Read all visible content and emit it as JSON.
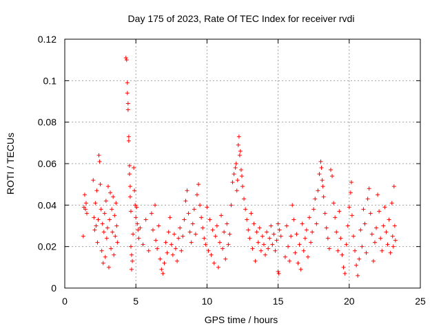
{
  "chart_data": {
    "type": "scatter",
    "title": "Day 175 of 2023, Rate Of TEC Index for receiver rvdi",
    "xlabel": "GPS time / hours",
    "ylabel": "ROTI / TECUs",
    "xlim": [
      0,
      25
    ],
    "ylim": [
      0,
      0.12
    ],
    "xticks": [
      0,
      5,
      10,
      15,
      20,
      25
    ],
    "xtick_labels": [
      "0",
      "5",
      "10",
      "15",
      "20",
      "25"
    ],
    "yticks": [
      0,
      0.02,
      0.04,
      0.06,
      0.08,
      0.1,
      0.12
    ],
    "ytick_labels": [
      "0",
      "0.02",
      "0.04",
      "0.06",
      "0.08",
      "0.1",
      "0.12"
    ],
    "grid": true,
    "marker": "+",
    "color": "#ff0000",
    "series": [
      {
        "name": "ROTI",
        "points": [
          [
            1.3,
            0.025
          ],
          [
            1.35,
            0.039
          ],
          [
            1.4,
            0.045
          ],
          [
            1.45,
            0.038
          ],
          [
            1.5,
            0.041
          ],
          [
            1.55,
            0.036
          ],
          [
            2.0,
            0.052
          ],
          [
            2.05,
            0.034
          ],
          [
            2.1,
            0.028
          ],
          [
            2.15,
            0.041
          ],
          [
            2.2,
            0.03
          ],
          [
            2.25,
            0.047
          ],
          [
            2.3,
            0.022
          ],
          [
            2.35,
            0.033
          ],
          [
            2.4,
            0.064
          ],
          [
            2.45,
            0.061
          ],
          [
            2.5,
            0.05
          ],
          [
            2.55,
            0.038
          ],
          [
            2.6,
            0.018
          ],
          [
            2.65,
            0.031
          ],
          [
            2.7,
            0.012
          ],
          [
            2.75,
            0.027
          ],
          [
            2.8,
            0.036
          ],
          [
            2.85,
            0.015
          ],
          [
            2.9,
            0.042
          ],
          [
            2.95,
            0.024
          ],
          [
            3.0,
            0.029
          ],
          [
            3.05,
            0.049
          ],
          [
            3.1,
            0.01
          ],
          [
            3.15,
            0.033
          ],
          [
            3.2,
            0.046
          ],
          [
            3.25,
            0.019
          ],
          [
            3.3,
            0.038
          ],
          [
            3.35,
            0.027
          ],
          [
            3.4,
            0.044
          ],
          [
            3.45,
            0.016
          ],
          [
            3.5,
            0.035
          ],
          [
            3.55,
            0.025
          ],
          [
            3.6,
            0.041
          ],
          [
            3.65,
            0.03
          ],
          [
            3.7,
            0.022
          ],
          [
            4.3,
            0.111
          ],
          [
            4.35,
            0.11
          ],
          [
            4.4,
            0.099
          ],
          [
            4.4,
            0.094
          ],
          [
            4.45,
            0.089
          ],
          [
            4.45,
            0.086
          ],
          [
            4.5,
            0.073
          ],
          [
            4.5,
            0.071
          ],
          [
            4.55,
            0.059
          ],
          [
            4.55,
            0.055
          ],
          [
            4.6,
            0.049
          ],
          [
            4.6,
            0.044
          ],
          [
            4.65,
            0.037
          ],
          [
            4.65,
            0.02
          ],
          [
            4.7,
            0.016
          ],
          [
            4.7,
            0.009
          ],
          [
            4.75,
            0.013
          ],
          [
            4.8,
            0.026
          ],
          [
            4.85,
            0.058
          ],
          [
            4.9,
            0.047
          ],
          [
            4.95,
            0.04
          ],
          [
            5.0,
            0.034
          ],
          [
            5.05,
            0.039
          ],
          [
            5.1,
            0.031
          ],
          [
            5.15,
            0.028
          ],
          [
            5.2,
            0.024
          ],
          [
            5.3,
            0.029
          ],
          [
            5.5,
            0.021
          ],
          [
            5.7,
            0.033
          ],
          [
            5.9,
            0.018
          ],
          [
            6.1,
            0.036
          ],
          [
            6.2,
            0.028
          ],
          [
            6.35,
            0.04
          ],
          [
            6.4,
            0.023
          ],
          [
            6.5,
            0.019
          ],
          [
            6.6,
            0.03
          ],
          [
            6.7,
            0.014
          ],
          [
            6.8,
            0.009
          ],
          [
            6.9,
            0.007
          ],
          [
            7.0,
            0.012
          ],
          [
            7.1,
            0.022
          ],
          [
            7.2,
            0.017
          ],
          [
            7.3,
            0.027
          ],
          [
            7.4,
            0.034
          ],
          [
            7.5,
            0.021
          ],
          [
            7.6,
            0.016
          ],
          [
            7.7,
            0.026
          ],
          [
            7.8,
            0.019
          ],
          [
            7.9,
            0.013
          ],
          [
            8.0,
            0.024
          ],
          [
            8.1,
            0.029
          ],
          [
            8.2,
            0.018
          ],
          [
            8.3,
            0.025
          ],
          [
            8.4,
            0.033
          ],
          [
            8.5,
            0.042
          ],
          [
            8.6,
            0.047
          ],
          [
            8.7,
            0.036
          ],
          [
            8.8,
            0.027
          ],
          [
            8.9,
            0.022
          ],
          [
            9.0,
            0.031
          ],
          [
            9.1,
            0.038
          ],
          [
            9.2,
            0.026
          ],
          [
            9.3,
            0.045
          ],
          [
            9.4,
            0.05
          ],
          [
            9.5,
            0.04
          ],
          [
            9.6,
            0.034
          ],
          [
            9.7,
            0.029
          ],
          [
            9.8,
            0.024
          ],
          [
            9.9,
            0.021
          ],
          [
            10.0,
            0.039
          ],
          [
            10.1,
            0.018
          ],
          [
            10.2,
            0.033
          ],
          [
            10.3,
            0.016
          ],
          [
            10.4,
            0.028
          ],
          [
            10.5,
            0.012
          ],
          [
            10.6,
            0.025
          ],
          [
            10.7,
            0.03
          ],
          [
            10.8,
            0.01
          ],
          [
            10.9,
            0.022
          ],
          [
            11.0,
            0.035
          ],
          [
            11.1,
            0.019
          ],
          [
            11.2,
            0.027
          ],
          [
            11.3,
            0.014
          ],
          [
            11.4,
            0.031
          ],
          [
            11.5,
            0.021
          ],
          [
            11.6,
            0.026
          ],
          [
            11.7,
            0.04
          ],
          [
            11.8,
            0.051
          ],
          [
            11.9,
            0.055
          ],
          [
            12.0,
            0.058
          ],
          [
            12.05,
            0.06
          ],
          [
            12.1,
            0.047
          ],
          [
            12.15,
            0.052
          ],
          [
            12.2,
            0.069
          ],
          [
            12.25,
            0.073
          ],
          [
            12.3,
            0.064
          ],
          [
            12.35,
            0.066
          ],
          [
            12.4,
            0.057
          ],
          [
            12.45,
            0.054
          ],
          [
            12.5,
            0.049
          ],
          [
            12.6,
            0.043
          ],
          [
            12.7,
            0.038
          ],
          [
            12.8,
            0.033
          ],
          [
            12.9,
            0.028
          ],
          [
            13.0,
            0.024
          ],
          [
            13.1,
            0.036
          ],
          [
            13.2,
            0.019
          ],
          [
            13.3,
            0.031
          ],
          [
            13.4,
            0.013
          ],
          [
            13.5,
            0.027
          ],
          [
            13.6,
            0.022
          ],
          [
            13.7,
            0.029
          ],
          [
            13.8,
            0.018
          ],
          [
            13.9,
            0.025
          ],
          [
            14.0,
            0.021
          ],
          [
            14.1,
            0.016
          ],
          [
            14.2,
            0.027
          ],
          [
            14.3,
            0.019
          ],
          [
            14.4,
            0.024
          ],
          [
            14.5,
            0.03
          ],
          [
            14.6,
            0.021
          ],
          [
            14.7,
            0.026
          ],
          [
            14.8,
            0.018
          ],
          [
            14.9,
            0.023
          ],
          [
            15.0,
            0.031
          ],
          [
            15.0,
            0.008
          ],
          [
            15.05,
            0.007
          ],
          [
            15.1,
            0.028
          ],
          [
            15.2,
            0.025
          ],
          [
            15.5,
            0.015
          ],
          [
            15.6,
            0.03
          ],
          [
            15.7,
            0.02
          ],
          [
            15.8,
            0.013
          ],
          [
            15.9,
            0.025
          ],
          [
            16.0,
            0.04
          ],
          [
            16.1,
            0.033
          ],
          [
            16.2,
            0.017
          ],
          [
            16.3,
            0.026
          ],
          [
            16.4,
            0.012
          ],
          [
            16.5,
            0.021
          ],
          [
            16.6,
            0.009
          ],
          [
            16.7,
            0.031
          ],
          [
            16.8,
            0.018
          ],
          [
            16.9,
            0.024
          ],
          [
            17.0,
            0.028
          ],
          [
            17.1,
            0.015
          ],
          [
            17.2,
            0.034
          ],
          [
            17.3,
            0.022
          ],
          [
            17.4,
            0.027
          ],
          [
            17.5,
            0.038
          ],
          [
            17.6,
            0.043
          ],
          [
            17.7,
            0.031
          ],
          [
            17.8,
            0.047
          ],
          [
            17.9,
            0.055
          ],
          [
            18.0,
            0.061
          ],
          [
            18.05,
            0.058
          ],
          [
            18.1,
            0.052
          ],
          [
            18.15,
            0.049
          ],
          [
            18.2,
            0.044
          ],
          [
            18.3,
            0.036
          ],
          [
            18.4,
            0.029
          ],
          [
            18.5,
            0.024
          ],
          [
            18.6,
            0.019
          ],
          [
            18.7,
            0.057
          ],
          [
            18.8,
            0.054
          ],
          [
            18.9,
            0.041
          ],
          [
            19.0,
            0.034
          ],
          [
            19.1,
            0.027
          ],
          [
            19.2,
            0.018
          ],
          [
            19.3,
            0.037
          ],
          [
            19.4,
            0.024
          ],
          [
            19.5,
            0.016
          ],
          [
            19.6,
            0.01
          ],
          [
            19.7,
            0.007
          ],
          [
            19.8,
            0.021
          ],
          [
            19.9,
            0.03
          ],
          [
            20.0,
            0.039
          ],
          [
            20.1,
            0.046
          ],
          [
            20.15,
            0.051
          ],
          [
            20.2,
            0.035
          ],
          [
            20.3,
            0.025
          ],
          [
            20.4,
            0.018
          ],
          [
            20.5,
            0.011
          ],
          [
            20.6,
            0.006
          ],
          [
            20.7,
            0.014
          ],
          [
            20.8,
            0.028
          ],
          [
            20.9,
            0.02
          ],
          [
            21.0,
            0.038
          ],
          [
            21.1,
            0.031
          ],
          [
            21.2,
            0.017
          ],
          [
            21.3,
            0.043
          ],
          [
            21.4,
            0.048
          ],
          [
            21.5,
            0.036
          ],
          [
            21.6,
            0.026
          ],
          [
            21.7,
            0.013
          ],
          [
            21.8,
            0.022
          ],
          [
            21.9,
            0.029
          ],
          [
            22.0,
            0.045
          ],
          [
            22.1,
            0.037
          ],
          [
            22.2,
            0.024
          ],
          [
            22.3,
            0.018
          ],
          [
            22.4,
            0.03
          ],
          [
            22.5,
            0.039
          ],
          [
            22.6,
            0.027
          ],
          [
            22.7,
            0.021
          ],
          [
            22.8,
            0.033
          ],
          [
            22.9,
            0.017
          ],
          [
            23.0,
            0.041
          ],
          [
            23.05,
            0.025
          ],
          [
            23.1,
            0.02
          ],
          [
            23.15,
            0.049
          ],
          [
            23.2,
            0.03
          ],
          [
            23.25,
            0.023
          ]
        ]
      }
    ]
  }
}
